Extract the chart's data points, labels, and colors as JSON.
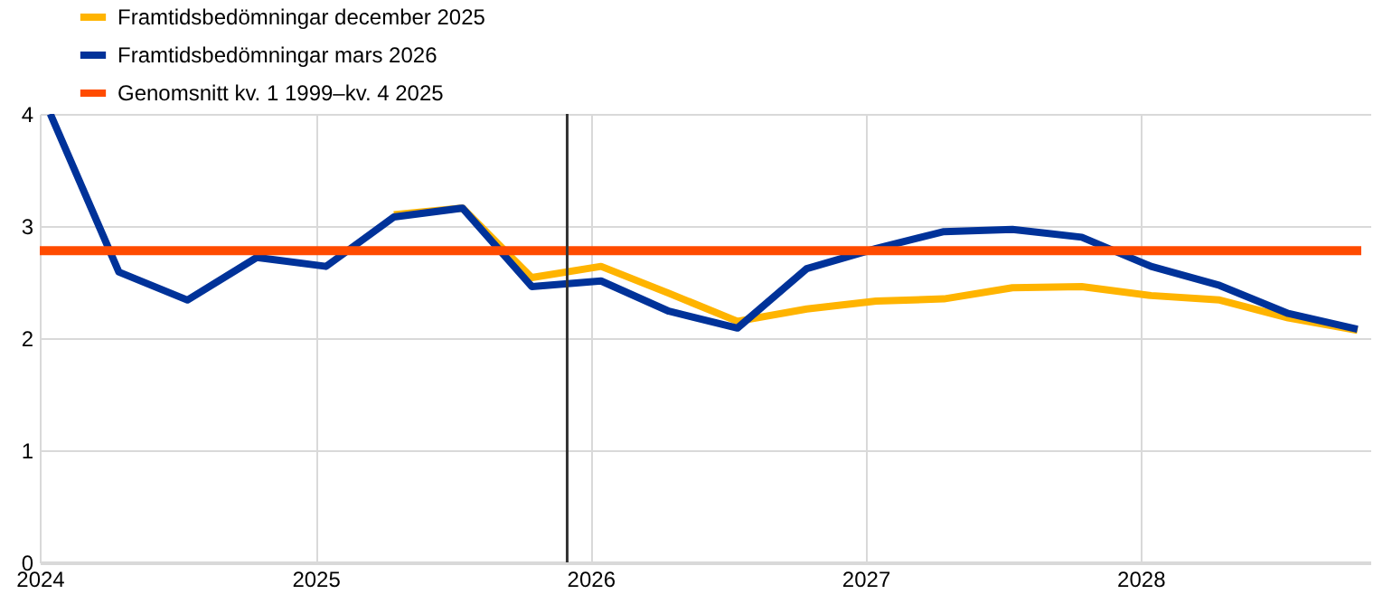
{
  "chart_data": {
    "type": "line",
    "x": [
      "2024-01-15",
      "2024-04-15",
      "2024-07-15",
      "2024-10-15",
      "2025-01-15",
      "2025-04-15",
      "2025-07-15",
      "2025-10-15",
      "2026-01-15",
      "2026-04-15",
      "2026-07-15",
      "2026-10-15",
      "2027-01-15",
      "2027-04-15",
      "2027-07-15",
      "2027-10-15",
      "2028-01-15",
      "2028-04-15",
      "2028-07-15",
      "2028-10-15"
    ],
    "series": [
      {
        "name": "Framtidsbedömningar december 2025",
        "color": "#ffb400",
        "values": [
          null,
          null,
          null,
          null,
          null,
          3.1,
          3.16,
          2.54,
          2.64,
          2.4,
          2.15,
          2.26,
          2.33,
          2.35,
          2.45,
          2.46,
          2.38,
          2.34,
          2.18,
          2.07
        ]
      },
      {
        "name": "Framtidsbedömningar mars 2026",
        "color": "#003299",
        "values": [
          4.0,
          2.59,
          2.34,
          2.72,
          2.64,
          3.08,
          3.16,
          2.46,
          2.51,
          2.24,
          2.09,
          2.62,
          2.8,
          2.95,
          2.97,
          2.9,
          2.64,
          2.47,
          2.22,
          2.08
        ]
      },
      {
        "name": "Genomsnitt kv. 1 1999–kv. 4 2025",
        "color": "#ff4b00",
        "x": [
          "2024-01-01",
          "2028-10-20"
        ],
        "values": [
          2.78,
          2.78
        ]
      }
    ],
    "ref_lines": [
      {
        "axis": "x",
        "value": "2025-12-01",
        "color": "#333333"
      }
    ],
    "xlim": [
      "2024-01-01",
      "2028-11-01"
    ],
    "xticks": [
      "2024",
      "2025",
      "2026",
      "2027",
      "2028"
    ],
    "ylim": [
      0,
      4
    ],
    "yticks": [
      0,
      1,
      2,
      3,
      4
    ],
    "grid": true,
    "legend": "top left"
  }
}
